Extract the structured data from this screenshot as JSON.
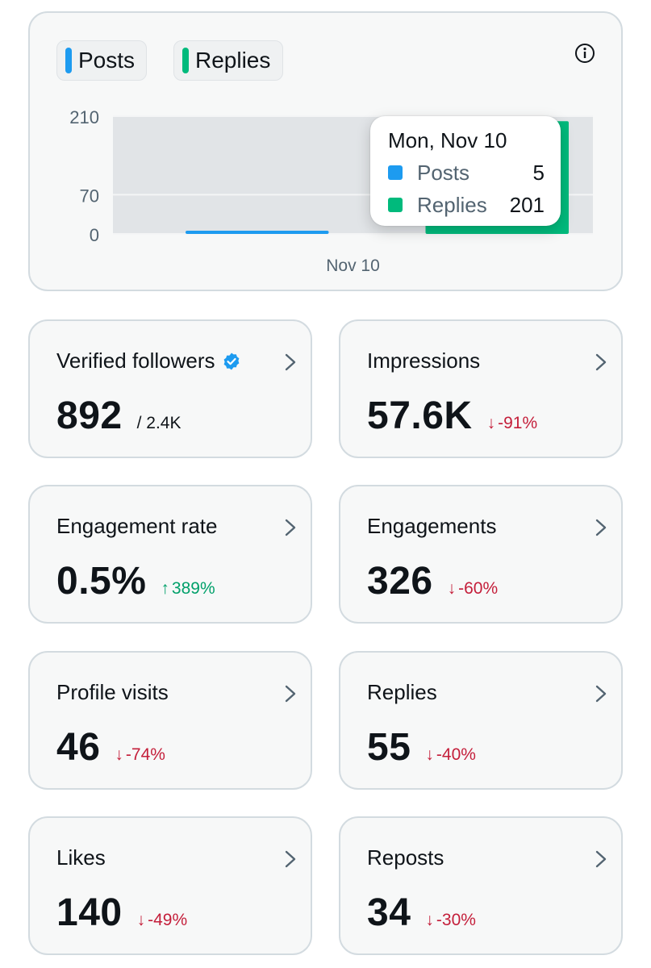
{
  "chart": {
    "legend": [
      {
        "label": "Posts",
        "color": "#1d9bf0"
      },
      {
        "label": "Replies",
        "color": "#00ba7c"
      }
    ],
    "info_icon": "info-circle-icon",
    "tooltip": {
      "date": "Mon, Nov 10",
      "rows": [
        {
          "label": "Posts",
          "value": "5",
          "color": "#1d9bf0"
        },
        {
          "label": "Replies",
          "value": "201",
          "color": "#00ba7c"
        }
      ]
    }
  },
  "chart_data": {
    "type": "bar",
    "categories": [
      "Nov 10"
    ],
    "series": [
      {
        "name": "Posts",
        "values": [
          5
        ],
        "color": "#1d9bf0"
      },
      {
        "name": "Replies",
        "values": [
          201
        ],
        "color": "#00ba7c"
      }
    ],
    "y_ticks": [
      "210",
      "70",
      "0"
    ],
    "ylim": [
      0,
      210
    ],
    "grid": true
  },
  "stats": [
    {
      "title": "Verified followers",
      "value": "892",
      "sub": "/ 2.4K",
      "change": "",
      "direction": "",
      "verified": true
    },
    {
      "title": "Impressions",
      "value": "57.6K",
      "sub": "",
      "change": "-91%",
      "direction": "down"
    },
    {
      "title": "Engagement rate",
      "value": "0.5%",
      "sub": "",
      "change": "389%",
      "direction": "up"
    },
    {
      "title": "Engagements",
      "value": "326",
      "sub": "",
      "change": "-60%",
      "direction": "down"
    },
    {
      "title": "Profile visits",
      "value": "46",
      "sub": "",
      "change": "-74%",
      "direction": "down"
    },
    {
      "title": "Replies",
      "value": "55",
      "sub": "",
      "change": "-40%",
      "direction": "down"
    },
    {
      "title": "Likes",
      "value": "140",
      "sub": "",
      "change": "-49%",
      "direction": "down"
    },
    {
      "title": "Reposts",
      "value": "34",
      "sub": "",
      "change": "-30%",
      "direction": "down"
    }
  ],
  "colors": {
    "down": "#c41e3a",
    "up": "#00a06a",
    "verified": "#1d9bf0"
  }
}
